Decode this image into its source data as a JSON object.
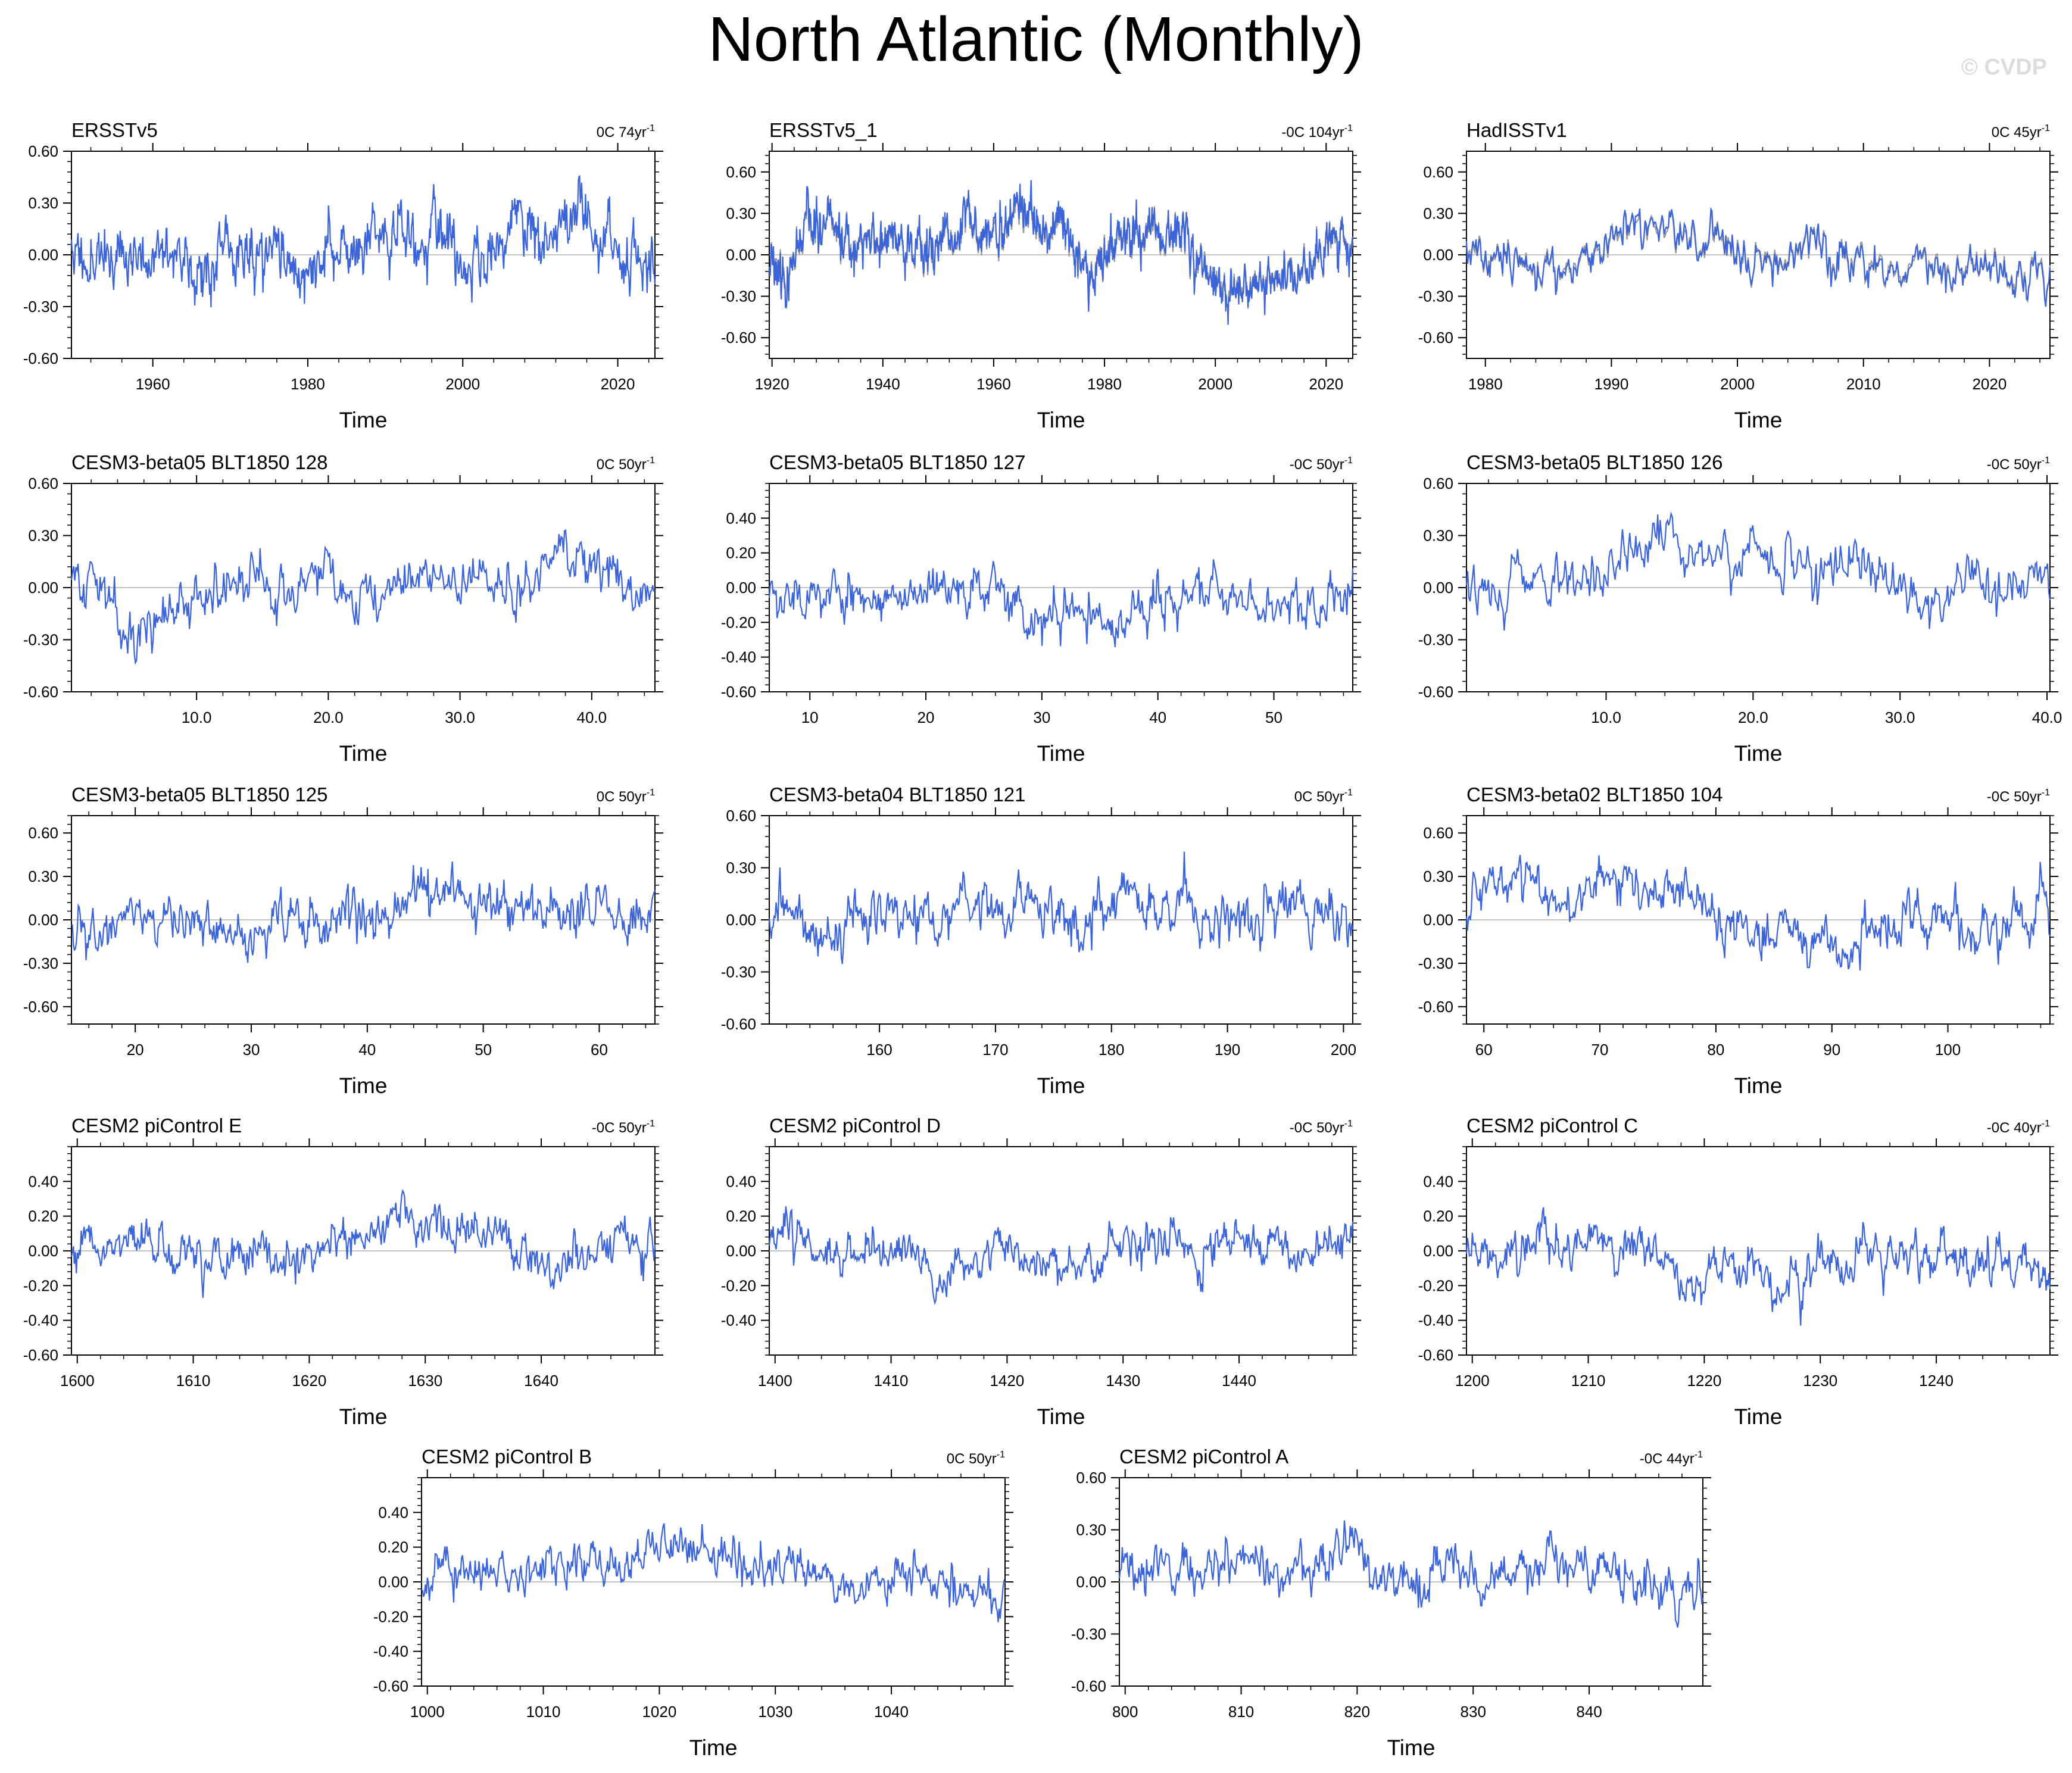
{
  "title": "North Atlantic (Monthly)",
  "watermark": "© CVDP",
  "colors": {
    "series_main": "#3b64d9",
    "series_alt": "#9a9a9a",
    "zero_line": "#b0b0b0",
    "axis": "#000000"
  },
  "chart_data": [
    {
      "type": "line",
      "title": "ERSSTv5",
      "annotation": "0C 74yr",
      "annotation_sup": "-1",
      "xlabel": "Time",
      "xlim": [
        1949.5,
        2024.8
      ],
      "ylim": [
        -0.6,
        0.6
      ],
      "xticks": [
        1960,
        1980,
        2000,
        2020
      ],
      "yticks": [
        -0.6,
        -0.3,
        0,
        0.3,
        0.6
      ],
      "ytick_labels": [
        "-0.60",
        "-0.30",
        "0.00",
        "0.30",
        "0.60"
      ],
      "seed": 11,
      "n": 900,
      "amp": 0.2,
      "overlay": false
    },
    {
      "type": "line",
      "title": "ERSSTv5_1",
      "annotation": "-0C 104yr",
      "annotation_sup": "-1",
      "xlabel": "Time",
      "xlim": [
        1919.5,
        2024.8
      ],
      "ylim": [
        -0.75,
        0.75
      ],
      "xticks": [
        1920,
        1940,
        1960,
        1980,
        2000,
        2020
      ],
      "yticks": [
        -0.6,
        -0.3,
        0,
        0.3,
        0.6
      ],
      "ytick_labels": [
        "-0.60",
        "-0.30",
        "0.00",
        "0.30",
        "0.60"
      ],
      "seed": 23,
      "n": 1260,
      "amp": 0.2,
      "overlay": true
    },
    {
      "type": "line",
      "title": "HadISSTv1",
      "annotation": "0C 45yr",
      "annotation_sup": "-1",
      "xlabel": "Time",
      "xlim": [
        1978.5,
        2024.8
      ],
      "ylim": [
        -0.75,
        0.75
      ],
      "xticks": [
        1980,
        1990,
        2000,
        2010,
        2020
      ],
      "yticks": [
        -0.6,
        -0.3,
        0,
        0.3,
        0.6
      ],
      "ytick_labels": [
        "-0.60",
        "-0.30",
        "0.00",
        "0.30",
        "0.60"
      ],
      "seed": 37,
      "n": 550,
      "amp": 0.18,
      "overlay": true
    },
    {
      "type": "line",
      "title": "CESM3-beta05 BLT1850 128",
      "annotation": "0C 50yr",
      "annotation_sup": "-1",
      "xlabel": "Time",
      "xlim": [
        0.5,
        44.8
      ],
      "ylim": [
        -0.6,
        0.6
      ],
      "xticks": [
        10,
        20,
        30,
        40
      ],
      "xtick_labels": [
        "10.0",
        "20.0",
        "30.0",
        "40.0"
      ],
      "yticks": [
        -0.6,
        -0.3,
        0,
        0.3,
        0.6
      ],
      "ytick_labels": [
        "-0.60",
        "-0.30",
        "0.00",
        "0.30",
        "0.60"
      ],
      "seed": 41,
      "n": 530,
      "amp": 0.18,
      "overlay": false
    },
    {
      "type": "line",
      "title": "CESM3-beta05 BLT1850 127",
      "annotation": "-0C 50yr",
      "annotation_sup": "-1",
      "xlabel": "Time",
      "xlim": [
        6.5,
        56.8
      ],
      "ylim": [
        -0.6,
        0.6
      ],
      "xticks": [
        10,
        20,
        30,
        40,
        50
      ],
      "yticks": [
        -0.6,
        -0.4,
        -0.2,
        0,
        0.2,
        0.4
      ],
      "ytick_labels": [
        "-0.60",
        "-0.40",
        "-0.20",
        "0.00",
        "0.20",
        "0.40"
      ],
      "seed": 53,
      "n": 600,
      "amp": 0.16,
      "overlay": false
    },
    {
      "type": "line",
      "title": "CESM3-beta05 BLT1850 126",
      "annotation": "-0C 50yr",
      "annotation_sup": "-1",
      "xlabel": "Time",
      "xlim": [
        0.5,
        40.2
      ],
      "ylim": [
        -0.6,
        0.6
      ],
      "xticks": [
        10,
        20,
        30,
        40
      ],
      "xtick_labels": [
        "10.0",
        "20.0",
        "30.0",
        "40.0"
      ],
      "yticks": [
        -0.6,
        -0.3,
        0,
        0.3,
        0.6
      ],
      "ytick_labels": [
        "-0.60",
        "-0.30",
        "0.00",
        "0.30",
        "0.60"
      ],
      "seed": 67,
      "n": 480,
      "amp": 0.17,
      "overlay": false
    },
    {
      "type": "line",
      "title": "CESM3-beta05 BLT1850 125",
      "annotation": "0C 50yr",
      "annotation_sup": "-1",
      "xlabel": "Time",
      "xlim": [
        14.5,
        64.8
      ],
      "ylim": [
        -0.72,
        0.72
      ],
      "xticks": [
        20,
        30,
        40,
        50,
        60
      ],
      "yticks": [
        -0.6,
        -0.3,
        0,
        0.3,
        0.6
      ],
      "ytick_labels": [
        "-0.60",
        "-0.30",
        "0.00",
        "0.30",
        "0.60"
      ],
      "seed": 71,
      "n": 600,
      "amp": 0.2,
      "overlay": false
    },
    {
      "type": "line",
      "title": "CESM3-beta04 BLT1850 121",
      "annotation": "0C 50yr",
      "annotation_sup": "-1",
      "xlabel": "Time",
      "xlim": [
        150.5,
        200.8
      ],
      "ylim": [
        -0.6,
        0.6
      ],
      "xticks": [
        160,
        170,
        180,
        190,
        200
      ],
      "yticks": [
        -0.6,
        -0.3,
        0,
        0.3,
        0.6
      ],
      "ytick_labels": [
        "-0.60",
        "-0.30",
        "0.00",
        "0.30",
        "0.60"
      ],
      "seed": 83,
      "n": 600,
      "amp": 0.18,
      "overlay": false
    },
    {
      "type": "line",
      "title": "CESM3-beta02 BLT1850 104",
      "annotation": "-0C 50yr",
      "annotation_sup": "-1",
      "xlabel": "Time",
      "xlim": [
        58.5,
        108.8
      ],
      "ylim": [
        -0.72,
        0.72
      ],
      "xticks": [
        60,
        70,
        80,
        90,
        100
      ],
      "yticks": [
        -0.6,
        -0.3,
        0,
        0.3,
        0.6
      ],
      "ytick_labels": [
        "-0.60",
        "-0.30",
        "0.00",
        "0.30",
        "0.60"
      ],
      "seed": 97,
      "n": 600,
      "amp": 0.19,
      "overlay": false
    },
    {
      "type": "line",
      "title": "CESM2 piControl E",
      "annotation": "-0C 50yr",
      "annotation_sup": "-1",
      "xlabel": "Time",
      "xlim": [
        1599.5,
        1649.8
      ],
      "ylim": [
        -0.6,
        0.6
      ],
      "xticks": [
        1600,
        1610,
        1620,
        1630,
        1640
      ],
      "yticks": [
        -0.6,
        -0.4,
        -0.2,
        0,
        0.2,
        0.4
      ],
      "ytick_labels": [
        "-0.60",
        "-0.40",
        "-0.20",
        "0.00",
        "0.20",
        "0.40"
      ],
      "seed": 101,
      "n": 600,
      "amp": 0.15,
      "overlay": false
    },
    {
      "type": "line",
      "title": "CESM2 piControl D",
      "annotation": "-0C 50yr",
      "annotation_sup": "-1",
      "xlabel": "Time",
      "xlim": [
        1399.5,
        1449.8
      ],
      "ylim": [
        -0.6,
        0.6
      ],
      "xticks": [
        1400,
        1410,
        1420,
        1430,
        1440
      ],
      "yticks": [
        -0.4,
        -0.2,
        0,
        0.2,
        0.4
      ],
      "ytick_labels": [
        "-0.40",
        "-0.20",
        "0.00",
        "0.20",
        "0.40"
      ],
      "seed": 113,
      "n": 600,
      "amp": 0.14,
      "overlay": false
    },
    {
      "type": "line",
      "title": "CESM2 piControl C",
      "annotation": "-0C 40yr",
      "annotation_sup": "-1",
      "xlabel": "Time",
      "xlim": [
        1199.5,
        1249.8
      ],
      "ylim": [
        -0.6,
        0.6
      ],
      "xticks": [
        1200,
        1210,
        1220,
        1230,
        1240
      ],
      "yticks": [
        -0.6,
        -0.4,
        -0.2,
        0,
        0.2,
        0.4
      ],
      "ytick_labels": [
        "-0.60",
        "-0.40",
        "-0.20",
        "0.00",
        "0.20",
        "0.40"
      ],
      "seed": 127,
      "n": 600,
      "amp": 0.15,
      "overlay": false
    },
    {
      "type": "line",
      "title": "CESM2 piControl B",
      "annotation": "0C 50yr",
      "annotation_sup": "-1",
      "xlabel": "Time",
      "xlim": [
        999.5,
        1049.8
      ],
      "ylim": [
        -0.6,
        0.6
      ],
      "xticks": [
        1000,
        1010,
        1020,
        1030,
        1040
      ],
      "yticks": [
        -0.6,
        -0.4,
        -0.2,
        0,
        0.2,
        0.4
      ],
      "ytick_labels": [
        "-0.60",
        "-0.40",
        "-0.20",
        "0.00",
        "0.20",
        "0.40"
      ],
      "seed": 131,
      "n": 600,
      "amp": 0.14,
      "overlay": false
    },
    {
      "type": "line",
      "title": "CESM2 piControl A",
      "annotation": "-0C 44yr",
      "annotation_sup": "-1",
      "xlabel": "Time",
      "xlim": [
        799.5,
        849.8
      ],
      "ylim": [
        -0.6,
        0.6
      ],
      "xticks": [
        800,
        810,
        820,
        830,
        840
      ],
      "yticks": [
        -0.6,
        -0.3,
        0,
        0.3,
        0.6
      ],
      "ytick_labels": [
        "-0.60",
        "-0.30",
        "0.00",
        "0.30",
        "0.60"
      ],
      "seed": 149,
      "n": 600,
      "amp": 0.16,
      "overlay": false
    }
  ]
}
